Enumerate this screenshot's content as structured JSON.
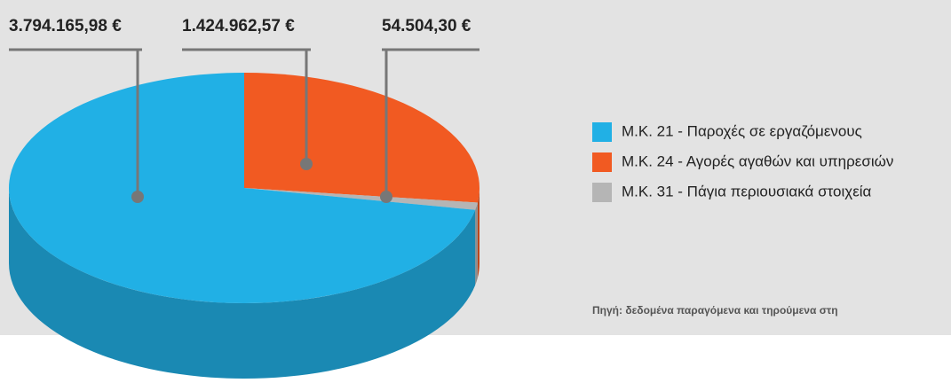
{
  "chart_data": {
    "type": "pie",
    "categories": [
      "Μ.Κ. 21 - Παροχές σε εργαζόμενους",
      "Μ.Κ. 24 - Αγορές αγαθών και υπηρεσιών",
      "Μ.Κ. 31 - Πάγια περιουσιακά στοιχεία"
    ],
    "values": [
      3794165.98,
      1424962.57,
      54504.3
    ],
    "value_labels": [
      "3.794.165,98 €",
      "1.424.962,57 €",
      "54.504,30 €"
    ],
    "colors": [
      "#21b0e5",
      "#f15a22",
      "#b5b5b5"
    ],
    "source": "Πηγή: δεδομένα παραγόμενα και τηρούμενα στη"
  }
}
